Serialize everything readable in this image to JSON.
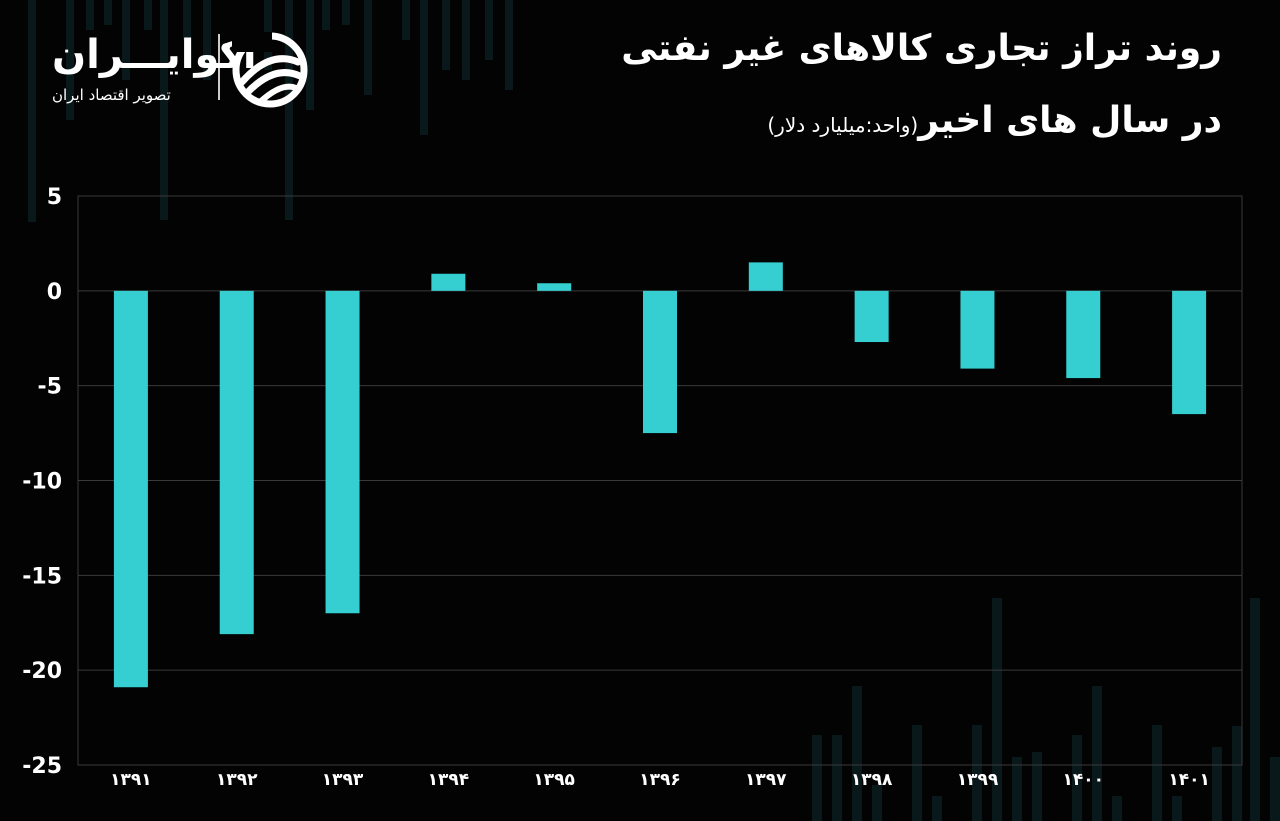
{
  "title": {
    "line1": "روند تراز تجاری کالاهای غیر نفتی",
    "line2": "در سال های اخیر",
    "unit": "(واحد:میلیارد دلار)"
  },
  "logo": {
    "name": "اکوایـــران",
    "tagline": "تصویر اقتصاد ایران"
  },
  "colors": {
    "background": "#030303",
    "bar": "#36cfd1",
    "grid": "#3a3a3a",
    "text": "#ffffff"
  },
  "chart_data": {
    "type": "bar",
    "categories": [
      "۱۳۹۱",
      "۱۳۹۲",
      "۱۳۹۳",
      "۱۳۹۴",
      "۱۳۹۵",
      "۱۳۹۶",
      "۱۳۹۷",
      "۱۳۹۸",
      "۱۳۹۹",
      "۱۴۰۰",
      "۱۴۰۱"
    ],
    "values": [
      -20.9,
      -18.1,
      -17.0,
      0.9,
      0.4,
      -7.5,
      1.5,
      -2.7,
      -4.1,
      -4.6,
      -6.5
    ],
    "ylim": [
      -25,
      5
    ],
    "yticks": [
      5,
      0,
      -5,
      -10,
      -15,
      -20,
      -25
    ],
    "ytick_labels": [
      "5",
      "0",
      "-5",
      "-10",
      "-15",
      "-20",
      "-25"
    ],
    "grid": true
  }
}
